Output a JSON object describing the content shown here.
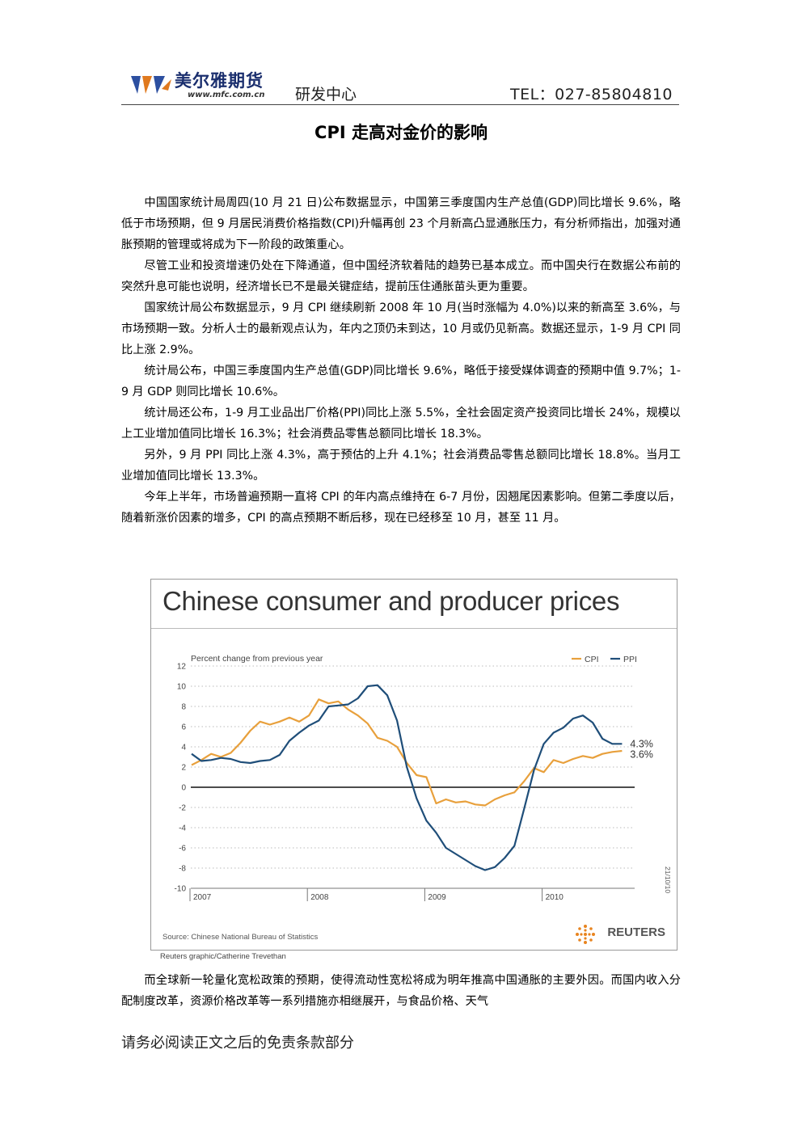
{
  "header": {
    "brand": "美尔雅期货",
    "site": "www.mfc.com.cn",
    "department": "研发中心",
    "tel": "TEL：027-85804810"
  },
  "title": "CPI 走高对金价的影响",
  "paragraphs": [
    "中国国家统计局周四(10 月 21 日)公布数据显示，中国第三季度国内生产总值(GDP)同比增长 9.6%，略低于市场预期，但 9 月居民消费价格指数(CPI)升幅再创 23 个月新高凸显通胀压力，有分析师指出，加强对通胀预期的管理或将成为下一阶段的政策重心。",
    "尽管工业和投资增速仍处在下降通道，但中国经济软着陆的趋势已基本成立。而中国央行在数据公布前的突然升息可能也说明，经济增长已不是最关键症结，提前压住通胀苗头更为重要。",
    "国家统计局公布数据显示，9 月 CPI 继续刷新 2008 年 10 月(当时涨幅为 4.0%)以来的新高至 3.6%，与市场预期一致。分析人士的最新观点认为，年内之顶仍未到达，10 月或仍见新高。数据还显示，1-9 月 CPI 同比上涨 2.9%。",
    "统计局公布，中国三季度国内生产总值(GDP)同比增长 9.6%，略低于接受媒体调查的预期中值 9.7%；1-9 月 GDP 则同比增长 10.6%。",
    " 统计局还公布，1-9 月工业品出厂价格(PPI)同比上涨 5.5%，全社会固定资产投资同比增长 24%，规模以上工业增加值同比增长 16.3%；社会消费品零售总额同比增长 18.3%。",
    " 另外，9 月 PPI 同比上涨 4.3%，高于预估的上升 4.1%；社会消费品零售总额同比增长 18.8%。当月工业增加值同比增长 13.3%。",
    "今年上半年，市场普遍预期一直将 CPI 的年内高点维持在 6-7 月份，因翘尾因素影响。但第二季度以后，随着新涨价因素的增多，CPI 的高点预期不断后移，现在已经移至 10 月，甚至 11 月。"
  ],
  "figure": {
    "source": "Source: Chinese National Bureau of Statistics",
    "logo_text": "REUTERS",
    "credit": "Reuters graphic/Catherine Trevethan"
  },
  "chart_data": {
    "type": "line",
    "title": "Chinese consumer and producer prices",
    "subtitle": "Percent change from previous year",
    "date_stamp": "21/10/10",
    "x_ticks": [
      "2007",
      "2008",
      "2009",
      "2010"
    ],
    "ylim": [
      -10,
      12
    ],
    "y_ticks": [
      12,
      10,
      8,
      6,
      4,
      2,
      0,
      -2,
      -4,
      -6,
      -8,
      -10
    ],
    "grid": true,
    "legend": "top-right",
    "colors": {
      "CPI": "#e8a03c",
      "PPI": "#1f4e79"
    },
    "x_months": [
      "2007-01",
      "2007-02",
      "2007-03",
      "2007-04",
      "2007-05",
      "2007-06",
      "2007-07",
      "2007-08",
      "2007-09",
      "2007-10",
      "2007-11",
      "2007-12",
      "2008-01",
      "2008-02",
      "2008-03",
      "2008-04",
      "2008-05",
      "2008-06",
      "2008-07",
      "2008-08",
      "2008-09",
      "2008-10",
      "2008-11",
      "2008-12",
      "2009-01",
      "2009-02",
      "2009-03",
      "2009-04",
      "2009-05",
      "2009-06",
      "2009-07",
      "2009-08",
      "2009-09",
      "2009-10",
      "2009-11",
      "2009-12",
      "2010-01",
      "2010-02",
      "2010-03",
      "2010-04",
      "2010-05",
      "2010-06",
      "2010-07",
      "2010-08",
      "2010-09"
    ],
    "series": [
      {
        "name": "CPI",
        "end_label": "3.6%",
        "values": [
          2.2,
          2.7,
          3.3,
          3.0,
          3.4,
          4.4,
          5.6,
          6.5,
          6.2,
          6.5,
          6.9,
          6.5,
          7.1,
          8.7,
          8.3,
          8.5,
          7.7,
          7.1,
          6.3,
          4.9,
          4.6,
          4.0,
          2.4,
          1.2,
          1.0,
          -1.6,
          -1.2,
          -1.5,
          -1.4,
          -1.7,
          -1.8,
          -1.2,
          -0.8,
          -0.5,
          0.6,
          1.9,
          1.5,
          2.7,
          2.4,
          2.8,
          3.1,
          2.9,
          3.3,
          3.5,
          3.6
        ]
      },
      {
        "name": "PPI",
        "end_label": "4.3%",
        "values": [
          3.3,
          2.6,
          2.7,
          2.9,
          2.8,
          2.5,
          2.4,
          2.6,
          2.7,
          3.2,
          4.6,
          5.4,
          6.1,
          6.6,
          8.0,
          8.1,
          8.2,
          8.8,
          10.0,
          10.1,
          9.1,
          6.6,
          2.0,
          -1.1,
          -3.3,
          -4.5,
          -6.0,
          -6.6,
          -7.2,
          -7.8,
          -8.2,
          -7.9,
          -7.0,
          -5.8,
          -2.1,
          1.7,
          4.3,
          5.4,
          5.9,
          6.8,
          7.1,
          6.4,
          4.8,
          4.3,
          4.3
        ]
      }
    ]
  },
  "paragraphs2": [
    "而全球新一轮量化宽松政策的预期，使得流动性宽松将成为明年推高中国通胀的主要外因。而国内收入分配制度改革，资源价格改革等一系列措施亦相继展开，与食品价格、天气"
  ],
  "footer": "请务必阅读正文之后的免责条款部分"
}
